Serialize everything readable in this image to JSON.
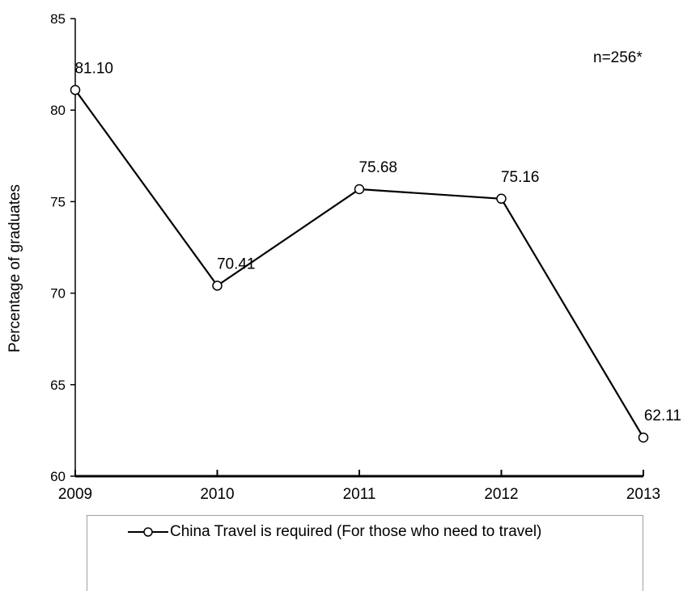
{
  "chart_data": {
    "type": "line",
    "title": "",
    "xlabel": "",
    "ylabel": "Percentage of graduates",
    "categories": [
      "2009",
      "2010",
      "2011",
      "2012",
      "2013"
    ],
    "series": [
      {
        "name": "China Travel is required (For those who need to travel)",
        "values": [
          81.1,
          70.41,
          75.68,
          75.16,
          62.11
        ],
        "labels": [
          "81.10",
          "70.41",
          "75.68",
          "75.16",
          "62.11"
        ]
      }
    ],
    "ylim": [
      60,
      85
    ],
    "yticks": [
      "60",
      "65",
      "70",
      "75",
      "80",
      "85"
    ],
    "annotation": "n=256*",
    "grid": false,
    "legend": "bottom",
    "line_color": "#000000",
    "marker": "open-circle"
  }
}
